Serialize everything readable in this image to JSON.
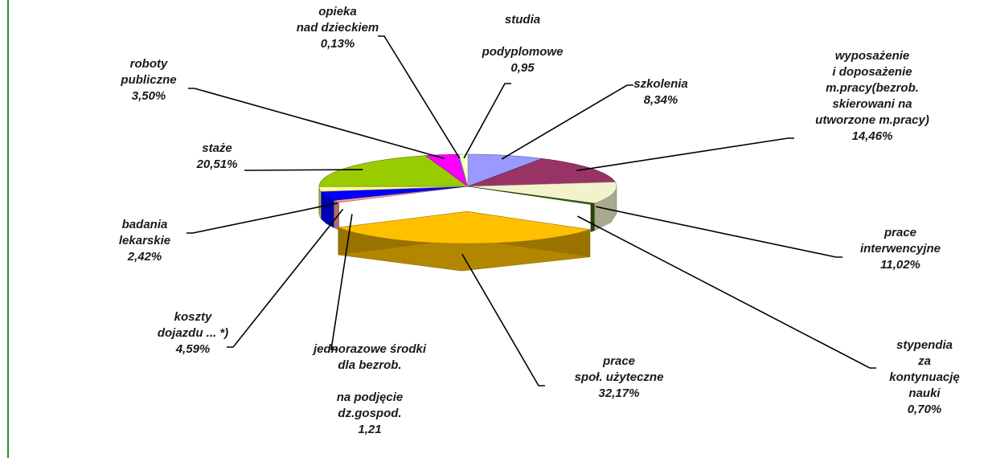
{
  "chart_data": {
    "type": "pie",
    "categories": [
      "szkolenia",
      "wyposażenie\ni doposażenie\nm.pracy(bezrob.\nskierowani na\nutworzone m.pracy)",
      "prace\ninterwencyjne",
      "stypendia\nza kontynuację nauki",
      "prace\nspoł. użyteczne",
      "jednorazowe środki\ndla bezrob.\n\nna podjęcie\ndz.gospod.",
      "koszty\ndojazdu ... *)",
      "badania\nlekarskie",
      "staże",
      "roboty\npubliczne",
      "opieka\nnad dzieckiem",
      "studia\n\npodyplomowe"
    ],
    "values": [
      8.34,
      14.46,
      11.02,
      0.7,
      32.17,
      1.21,
      4.59,
      2.42,
      20.51,
      3.5,
      0.13,
      0.95
    ],
    "value_labels": [
      "8,34%",
      "14,46%",
      "11,02%",
      "0,70%",
      "32,17%",
      "1,21",
      "4,59%",
      "2,42%",
      "20,51%",
      "3,50%",
      "0,13%",
      "0,95"
    ],
    "colors": [
      "#9999ff",
      "#993366",
      "#f2f2cc",
      "#336600",
      "#ffc000",
      "#ff9999",
      "#0000ff",
      "#ffff99",
      "#99cc00",
      "#ff00ff",
      "#00ccff",
      "#ffffcc"
    ]
  }
}
